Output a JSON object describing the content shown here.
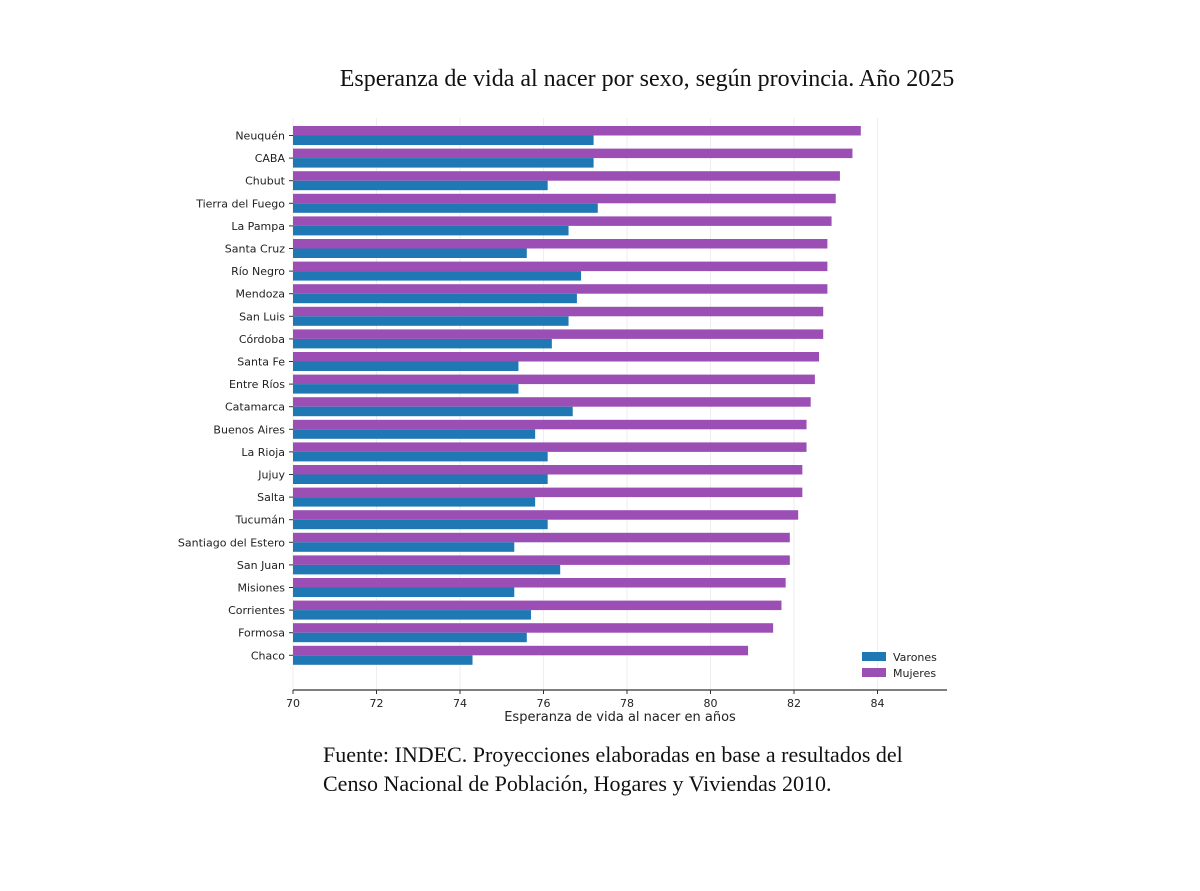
{
  "chart_data": {
    "type": "bar",
    "orientation": "horizontal",
    "title": "Esperanza de vida al nacer por sexo, según provincia. Año 2025",
    "xlabel": "Esperanza de vida al nacer en años",
    "ylabel": "",
    "xlim": [
      70,
      85.6
    ],
    "xticks": [
      70,
      72,
      74,
      76,
      78,
      80,
      82,
      84
    ],
    "grid": "vertical light",
    "legend_position": "bottom-right",
    "categories": [
      "Neuquén",
      "CABA",
      "Chubut",
      "Tierra del Fuego",
      "La Pampa",
      "Santa Cruz",
      "Río Negro",
      "Mendoza",
      "San Luis",
      "Córdoba",
      "Santa Fe",
      "Entre Ríos",
      "Catamarca",
      "Buenos Aires",
      "La Rioja",
      "Jujuy",
      "Salta",
      "Tucumán",
      "Santiago del Estero",
      "San Juan",
      "Misiones",
      "Corrientes",
      "Formosa",
      "Chaco"
    ],
    "series": [
      {
        "name": "Varones",
        "color": "#1f77b4",
        "values": [
          77.2,
          77.2,
          76.1,
          77.3,
          76.6,
          75.6,
          76.9,
          76.8,
          76.6,
          76.2,
          75.4,
          75.4,
          76.7,
          75.8,
          76.1,
          76.1,
          75.8,
          76.1,
          75.3,
          76.4,
          75.3,
          75.7,
          75.6,
          74.3
        ]
      },
      {
        "name": "Mujeres",
        "color": "#9b4fb5",
        "values": [
          83.6,
          83.4,
          83.1,
          83.0,
          82.9,
          82.8,
          82.8,
          82.8,
          82.7,
          82.7,
          82.6,
          82.5,
          82.4,
          82.3,
          82.3,
          82.2,
          82.2,
          82.1,
          81.9,
          81.9,
          81.8,
          81.7,
          81.5,
          80.9
        ]
      }
    ],
    "source": "Fuente: INDEC. Proyecciones elaboradas en base a resultados del Censo Nacional de Población, Hogares y Viviendas 2010."
  }
}
